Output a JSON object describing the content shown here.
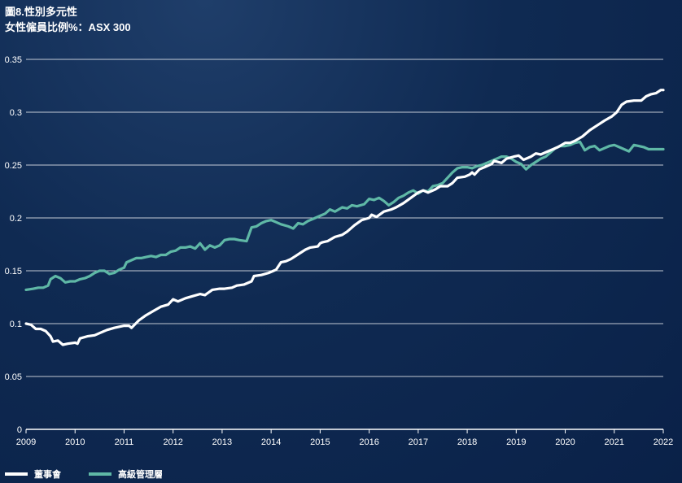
{
  "title": "圖8.性別多元性",
  "subtitle": "女性僱員比例%：ASX 300",
  "chart_data": {
    "type": "line",
    "xlim": [
      2009,
      2022
    ],
    "ylim": [
      0,
      0.35
    ],
    "x_ticks": [
      "2009",
      "2010",
      "2011",
      "2012",
      "2013",
      "2014",
      "2015",
      "2016",
      "2017",
      "2018",
      "2019",
      "2020",
      "2021",
      "2022"
    ],
    "y_ticks": [
      "0",
      "0.05",
      "0.1",
      "0.15",
      "0.2",
      "0.25",
      "0.3",
      "0.35"
    ],
    "grid": true,
    "legend_position": "bottom-left",
    "series": [
      {
        "name": "董事會",
        "color": "#ffffff",
        "points": [
          [
            2009.0,
            0.1
          ],
          [
            2009.1,
            0.099
          ],
          [
            2009.2,
            0.095
          ],
          [
            2009.3,
            0.095
          ],
          [
            2009.4,
            0.093
          ],
          [
            2009.5,
            0.088
          ],
          [
            2009.55,
            0.083
          ],
          [
            2009.65,
            0.084
          ],
          [
            2009.75,
            0.08
          ],
          [
            2009.85,
            0.081
          ],
          [
            2010.0,
            0.082
          ],
          [
            2010.05,
            0.081
          ],
          [
            2010.1,
            0.086
          ],
          [
            2010.25,
            0.088
          ],
          [
            2010.4,
            0.089
          ],
          [
            2010.5,
            0.091
          ],
          [
            2010.65,
            0.094
          ],
          [
            2010.8,
            0.096
          ],
          [
            2011.0,
            0.098
          ],
          [
            2011.1,
            0.098
          ],
          [
            2011.15,
            0.096
          ],
          [
            2011.3,
            0.103
          ],
          [
            2011.45,
            0.108
          ],
          [
            2011.6,
            0.112
          ],
          [
            2011.75,
            0.116
          ],
          [
            2011.9,
            0.118
          ],
          [
            2012.0,
            0.123
          ],
          [
            2012.1,
            0.121
          ],
          [
            2012.25,
            0.124
          ],
          [
            2012.4,
            0.126
          ],
          [
            2012.55,
            0.128
          ],
          [
            2012.65,
            0.127
          ],
          [
            2012.8,
            0.132
          ],
          [
            2012.95,
            0.133
          ],
          [
            2013.05,
            0.133
          ],
          [
            2013.2,
            0.134
          ],
          [
            2013.3,
            0.136
          ],
          [
            2013.45,
            0.137
          ],
          [
            2013.6,
            0.14
          ],
          [
            2013.65,
            0.145
          ],
          [
            2013.8,
            0.146
          ],
          [
            2013.95,
            0.148
          ],
          [
            2014.05,
            0.15
          ],
          [
            2014.1,
            0.151
          ],
          [
            2014.2,
            0.158
          ],
          [
            2014.3,
            0.159
          ],
          [
            2014.4,
            0.161
          ],
          [
            2014.5,
            0.164
          ],
          [
            2014.6,
            0.167
          ],
          [
            2014.7,
            0.17
          ],
          [
            2014.8,
            0.172
          ],
          [
            2014.95,
            0.173
          ],
          [
            2015.0,
            0.176
          ],
          [
            2015.05,
            0.177
          ],
          [
            2015.15,
            0.178
          ],
          [
            2015.3,
            0.182
          ],
          [
            2015.45,
            0.184
          ],
          [
            2015.55,
            0.187
          ],
          [
            2015.7,
            0.193
          ],
          [
            2015.85,
            0.198
          ],
          [
            2016.0,
            0.2
          ],
          [
            2016.05,
            0.203
          ],
          [
            2016.15,
            0.201
          ],
          [
            2016.3,
            0.206
          ],
          [
            2016.45,
            0.208
          ],
          [
            2016.55,
            0.21
          ],
          [
            2016.7,
            0.214
          ],
          [
            2016.85,
            0.219
          ],
          [
            2017.0,
            0.224
          ],
          [
            2017.1,
            0.226
          ],
          [
            2017.2,
            0.224
          ],
          [
            2017.35,
            0.227
          ],
          [
            2017.45,
            0.23
          ],
          [
            2017.6,
            0.23
          ],
          [
            2017.7,
            0.233
          ],
          [
            2017.8,
            0.238
          ],
          [
            2017.95,
            0.239
          ],
          [
            2018.05,
            0.241
          ],
          [
            2018.1,
            0.243
          ],
          [
            2018.15,
            0.241
          ],
          [
            2018.25,
            0.246
          ],
          [
            2018.35,
            0.248
          ],
          [
            2018.5,
            0.251
          ],
          [
            2018.55,
            0.254
          ],
          [
            2018.7,
            0.252
          ],
          [
            2018.8,
            0.256
          ],
          [
            2018.95,
            0.258
          ],
          [
            2019.05,
            0.259
          ],
          [
            2019.15,
            0.255
          ],
          [
            2019.3,
            0.258
          ],
          [
            2019.4,
            0.261
          ],
          [
            2019.5,
            0.26
          ],
          [
            2019.6,
            0.262
          ],
          [
            2019.75,
            0.265
          ],
          [
            2019.85,
            0.267
          ],
          [
            2020.0,
            0.271
          ],
          [
            2020.1,
            0.271
          ],
          [
            2020.2,
            0.273
          ],
          [
            2020.35,
            0.277
          ],
          [
            2020.5,
            0.283
          ],
          [
            2020.6,
            0.286
          ],
          [
            2020.7,
            0.289
          ],
          [
            2020.8,
            0.292
          ],
          [
            2020.95,
            0.296
          ],
          [
            2021.05,
            0.3
          ],
          [
            2021.15,
            0.307
          ],
          [
            2021.25,
            0.31
          ],
          [
            2021.4,
            0.311
          ],
          [
            2021.55,
            0.311
          ],
          [
            2021.65,
            0.315
          ],
          [
            2021.75,
            0.317
          ],
          [
            2021.85,
            0.318
          ],
          [
            2021.95,
            0.321
          ],
          [
            2022.0,
            0.321
          ]
        ]
      },
      {
        "name": "高級管理層",
        "color": "#5fb8a6",
        "points": [
          [
            2009.0,
            0.132
          ],
          [
            2009.15,
            0.133
          ],
          [
            2009.25,
            0.134
          ],
          [
            2009.35,
            0.134
          ],
          [
            2009.45,
            0.136
          ],
          [
            2009.5,
            0.142
          ],
          [
            2009.6,
            0.145
          ],
          [
            2009.7,
            0.143
          ],
          [
            2009.8,
            0.139
          ],
          [
            2009.9,
            0.14
          ],
          [
            2010.0,
            0.14
          ],
          [
            2010.1,
            0.142
          ],
          [
            2010.2,
            0.143
          ],
          [
            2010.3,
            0.145
          ],
          [
            2010.4,
            0.148
          ],
          [
            2010.5,
            0.15
          ],
          [
            2010.6,
            0.15
          ],
          [
            2010.7,
            0.147
          ],
          [
            2010.8,
            0.148
          ],
          [
            2010.9,
            0.151
          ],
          [
            2011.0,
            0.153
          ],
          [
            2011.05,
            0.158
          ],
          [
            2011.15,
            0.16
          ],
          [
            2011.25,
            0.162
          ],
          [
            2011.35,
            0.162
          ],
          [
            2011.45,
            0.163
          ],
          [
            2011.55,
            0.164
          ],
          [
            2011.65,
            0.163
          ],
          [
            2011.75,
            0.165
          ],
          [
            2011.85,
            0.165
          ],
          [
            2011.95,
            0.168
          ],
          [
            2012.05,
            0.169
          ],
          [
            2012.15,
            0.172
          ],
          [
            2012.25,
            0.172
          ],
          [
            2012.35,
            0.173
          ],
          [
            2012.45,
            0.171
          ],
          [
            2012.55,
            0.176
          ],
          [
            2012.65,
            0.17
          ],
          [
            2012.75,
            0.174
          ],
          [
            2012.85,
            0.172
          ],
          [
            2012.95,
            0.174
          ],
          [
            2013.05,
            0.179
          ],
          [
            2013.15,
            0.18
          ],
          [
            2013.25,
            0.18
          ],
          [
            2013.35,
            0.179
          ],
          [
            2013.5,
            0.178
          ],
          [
            2013.6,
            0.191
          ],
          [
            2013.7,
            0.192
          ],
          [
            2013.8,
            0.195
          ],
          [
            2013.9,
            0.197
          ],
          [
            2014.0,
            0.198
          ],
          [
            2014.1,
            0.196
          ],
          [
            2014.2,
            0.194
          ],
          [
            2014.35,
            0.192
          ],
          [
            2014.45,
            0.19
          ],
          [
            2014.55,
            0.195
          ],
          [
            2014.65,
            0.194
          ],
          [
            2014.75,
            0.197
          ],
          [
            2014.9,
            0.2
          ],
          [
            2015.0,
            0.202
          ],
          [
            2015.1,
            0.204
          ],
          [
            2015.2,
            0.208
          ],
          [
            2015.3,
            0.206
          ],
          [
            2015.45,
            0.21
          ],
          [
            2015.55,
            0.209
          ],
          [
            2015.65,
            0.212
          ],
          [
            2015.75,
            0.211
          ],
          [
            2015.9,
            0.213
          ],
          [
            2016.0,
            0.218
          ],
          [
            2016.1,
            0.217
          ],
          [
            2016.2,
            0.219
          ],
          [
            2016.3,
            0.216
          ],
          [
            2016.4,
            0.212
          ],
          [
            2016.5,
            0.215
          ],
          [
            2016.6,
            0.219
          ],
          [
            2016.7,
            0.221
          ],
          [
            2016.8,
            0.224
          ],
          [
            2016.9,
            0.226
          ],
          [
            2017.0,
            0.223
          ],
          [
            2017.1,
            0.226
          ],
          [
            2017.2,
            0.225
          ],
          [
            2017.3,
            0.23
          ],
          [
            2017.4,
            0.231
          ],
          [
            2017.5,
            0.233
          ],
          [
            2017.6,
            0.238
          ],
          [
            2017.7,
            0.243
          ],
          [
            2017.8,
            0.247
          ],
          [
            2017.9,
            0.248
          ],
          [
            2018.0,
            0.248
          ],
          [
            2018.1,
            0.247
          ],
          [
            2018.2,
            0.249
          ],
          [
            2018.3,
            0.25
          ],
          [
            2018.4,
            0.252
          ],
          [
            2018.5,
            0.254
          ],
          [
            2018.6,
            0.256
          ],
          [
            2018.7,
            0.258
          ],
          [
            2018.8,
            0.258
          ],
          [
            2018.9,
            0.256
          ],
          [
            2019.0,
            0.253
          ],
          [
            2019.1,
            0.251
          ],
          [
            2019.2,
            0.246
          ],
          [
            2019.3,
            0.25
          ],
          [
            2019.4,
            0.253
          ],
          [
            2019.5,
            0.256
          ],
          [
            2019.6,
            0.258
          ],
          [
            2019.7,
            0.262
          ],
          [
            2019.8,
            0.266
          ],
          [
            2019.9,
            0.268
          ],
          [
            2020.0,
            0.268
          ],
          [
            2020.1,
            0.269
          ],
          [
            2020.2,
            0.271
          ],
          [
            2020.3,
            0.272
          ],
          [
            2020.4,
            0.264
          ],
          [
            2020.5,
            0.267
          ],
          [
            2020.6,
            0.268
          ],
          [
            2020.7,
            0.264
          ],
          [
            2020.8,
            0.266
          ],
          [
            2020.9,
            0.268
          ],
          [
            2021.0,
            0.269
          ],
          [
            2021.1,
            0.267
          ],
          [
            2021.2,
            0.265
          ],
          [
            2021.3,
            0.263
          ],
          [
            2021.4,
            0.269
          ],
          [
            2021.5,
            0.268
          ],
          [
            2021.6,
            0.267
          ],
          [
            2021.7,
            0.265
          ],
          [
            2021.8,
            0.265
          ],
          [
            2021.9,
            0.265
          ],
          [
            2022.0,
            0.265
          ]
        ]
      }
    ]
  }
}
